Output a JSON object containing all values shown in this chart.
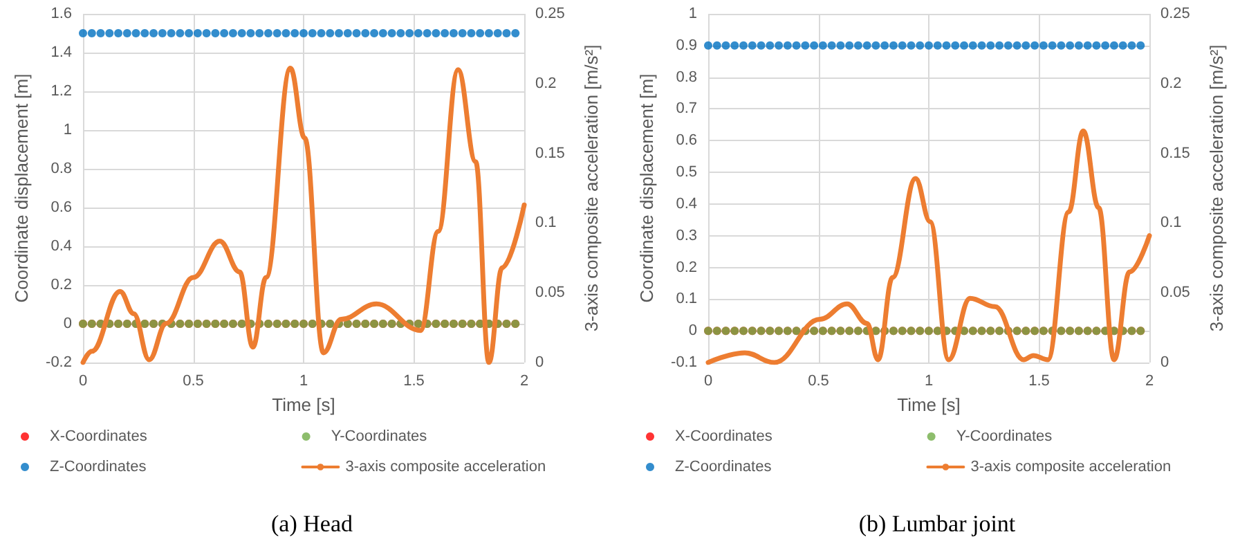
{
  "chart_data": [
    {
      "type": "scatter",
      "title": "(a) Head",
      "xlabel": "Time [s]",
      "ylabel": "Coordinate displacement [m]",
      "y2label": "3-axis composite acceleration [m/s²]",
      "xlim": [
        0,
        2
      ],
      "xticks": [
        0,
        0.5,
        1,
        1.5,
        2
      ],
      "ylim": [
        -0.2,
        1.6
      ],
      "yticks": [
        -0.2,
        0,
        0.2,
        0.4,
        0.6,
        0.8,
        1,
        1.2,
        1.4,
        1.6
      ],
      "y2lim": [
        0,
        0.25
      ],
      "y2ticks": [
        0,
        0.05,
        0.1,
        0.15,
        0.2,
        0.25
      ],
      "grid": true,
      "legend": "bottom",
      "marker": "circle",
      "x": [
        0,
        0.04,
        0.08,
        0.12,
        0.16,
        0.2,
        0.24,
        0.28,
        0.32,
        0.36,
        0.4,
        0.44,
        0.48,
        0.52,
        0.56,
        0.6,
        0.64,
        0.68,
        0.72,
        0.76,
        0.8,
        0.84,
        0.88,
        0.92,
        0.96,
        1,
        1.04,
        1.08,
        1.12,
        1.16,
        1.2,
        1.24,
        1.28,
        1.32,
        1.36,
        1.4,
        1.44,
        1.48,
        1.52,
        1.56,
        1.6,
        1.64,
        1.68,
        1.72,
        1.76,
        1.8,
        1.84,
        1.88,
        1.92,
        1.96
      ],
      "series": [
        {
          "name": "X-Coordinates",
          "color": "#ff0000",
          "values": [
            0,
            0,
            0,
            0,
            0,
            0,
            0,
            0,
            0,
            0,
            0,
            0,
            0,
            0,
            0,
            0,
            0,
            0,
            0,
            0,
            0,
            0,
            0,
            0,
            0,
            0,
            0,
            0,
            0,
            0,
            0,
            0,
            0,
            0,
            0,
            0,
            0,
            0,
            0,
            0,
            0,
            0,
            0,
            0,
            0,
            0,
            0,
            0,
            0,
            0
          ]
        },
        {
          "name": "Y-Coordinates",
          "color": "#70ad47",
          "values": [
            0,
            0,
            0,
            0,
            0,
            0,
            0,
            0,
            0,
            0,
            0,
            0,
            0,
            0,
            0,
            0,
            0,
            0,
            0,
            0,
            0,
            0,
            0,
            0,
            0,
            0,
            0,
            0,
            0,
            0,
            0,
            0,
            0,
            0,
            0,
            0,
            0,
            0,
            0,
            0,
            0,
            0,
            0,
            0,
            0,
            0,
            0,
            0,
            0,
            0
          ]
        },
        {
          "name": "Z-Coordinates",
          "color": "#0070c0",
          "values": [
            1.5,
            1.5,
            1.5,
            1.5,
            1.5,
            1.5,
            1.5,
            1.5,
            1.5,
            1.5,
            1.5,
            1.5,
            1.5,
            1.5,
            1.5,
            1.5,
            1.5,
            1.5,
            1.5,
            1.5,
            1.5,
            1.5,
            1.5,
            1.5,
            1.5,
            1.5,
            1.5,
            1.5,
            1.5,
            1.5,
            1.5,
            1.5,
            1.5,
            1.5,
            1.5,
            1.5,
            1.5,
            1.5,
            1.5,
            1.5,
            1.5,
            1.5,
            1.5,
            1.5,
            1.5,
            1.5,
            1.5,
            1.5,
            1.5,
            1.5
          ]
        },
        {
          "name": "3-axis composite acceleration",
          "type": "line",
          "axis": "y2",
          "marker": "none",
          "color": "#ed7d31",
          "x": [
            0,
            0.04,
            0.168,
            0.23,
            0.3,
            0.377,
            0.5,
            0.62,
            0.71,
            0.77,
            0.83,
            0.94,
            1.005,
            1.09,
            1.17,
            1.33,
            1.53,
            1.61,
            1.7,
            1.78,
            1.84,
            1.9,
            2
          ],
          "values": [
            0,
            0.008,
            0.051,
            0.035,
            0.002,
            0.028,
            0.061,
            0.087,
            0.065,
            0.011,
            0.061,
            0.211,
            0.161,
            0.007,
            0.031,
            0.042,
            0.023,
            0.094,
            0.21,
            0.144,
            0,
            0.068,
            0.113
          ]
        }
      ]
    },
    {
      "type": "scatter",
      "title": "(b) Lumbar joint",
      "xlabel": "Time [s]",
      "ylabel": "Coordinate displacement [m]",
      "y2label": "3-axis composite acceleration [m/s²]",
      "xlim": [
        0,
        2
      ],
      "xticks": [
        0,
        0.5,
        1,
        1.5,
        2
      ],
      "ylim": [
        -0.1,
        1
      ],
      "yticks": [
        -0.1,
        0,
        0.1,
        0.2,
        0.3,
        0.4,
        0.5,
        0.6,
        0.7,
        0.8,
        0.9,
        1
      ],
      "y2lim": [
        0,
        0.25
      ],
      "y2ticks": [
        0,
        0.05,
        0.1,
        0.15,
        0.2,
        0.25
      ],
      "grid": true,
      "legend": "bottom",
      "marker": "circle",
      "x": [
        0,
        0.04,
        0.08,
        0.12,
        0.16,
        0.2,
        0.24,
        0.28,
        0.32,
        0.36,
        0.4,
        0.44,
        0.48,
        0.52,
        0.56,
        0.6,
        0.64,
        0.68,
        0.72,
        0.76,
        0.8,
        0.84,
        0.88,
        0.92,
        0.96,
        1,
        1.04,
        1.08,
        1.12,
        1.16,
        1.2,
        1.24,
        1.28,
        1.32,
        1.36,
        1.4,
        1.44,
        1.48,
        1.52,
        1.56,
        1.6,
        1.64,
        1.68,
        1.72,
        1.76,
        1.8,
        1.84,
        1.88,
        1.92,
        1.96
      ],
      "series": [
        {
          "name": "X-Coordinates",
          "color": "#ff0000",
          "values": [
            0,
            0,
            0,
            0,
            0,
            0,
            0,
            0,
            0,
            0,
            0,
            0,
            0,
            0,
            0,
            0,
            0,
            0,
            0,
            0,
            0,
            0,
            0,
            0,
            0,
            0,
            0,
            0,
            0,
            0,
            0,
            0,
            0,
            0,
            0,
            0,
            0,
            0,
            0,
            0,
            0,
            0,
            0,
            0,
            0,
            0,
            0,
            0,
            0,
            0
          ]
        },
        {
          "name": "Y-Coordinates",
          "color": "#70ad47",
          "values": [
            0,
            0,
            0,
            0,
            0,
            0,
            0,
            0,
            0,
            0,
            0,
            0,
            0,
            0,
            0,
            0,
            0,
            0,
            0,
            0,
            0,
            0,
            0,
            0,
            0,
            0,
            0,
            0,
            0,
            0,
            0,
            0,
            0,
            0,
            0,
            0,
            0,
            0,
            0,
            0,
            0,
            0,
            0,
            0,
            0,
            0,
            0,
            0,
            0,
            0
          ]
        },
        {
          "name": "Z-Coordinates",
          "color": "#0070c0",
          "values": [
            0.9,
            0.9,
            0.9,
            0.9,
            0.9,
            0.9,
            0.9,
            0.9,
            0.9,
            0.9,
            0.9,
            0.9,
            0.9,
            0.9,
            0.9,
            0.9,
            0.9,
            0.9,
            0.9,
            0.9,
            0.9,
            0.9,
            0.9,
            0.9,
            0.9,
            0.9,
            0.9,
            0.9,
            0.9,
            0.9,
            0.9,
            0.9,
            0.9,
            0.9,
            0.9,
            0.9,
            0.9,
            0.9,
            0.9,
            0.9,
            0.9,
            0.9,
            0.9,
            0.9,
            0.9,
            0.9,
            0.9,
            0.9,
            0.9,
            0.9
          ]
        },
        {
          "name": "3-axis composite acceleration",
          "type": "line",
          "axis": "y2",
          "marker": "none",
          "color": "#ed7d31",
          "x": [
            0,
            0.166,
            0.3,
            0.506,
            0.63,
            0.72,
            0.77,
            0.836,
            0.94,
            1.006,
            1.09,
            1.187,
            1.3,
            1.43,
            1.474,
            1.54,
            1.634,
            1.7,
            1.77,
            1.84,
            1.91,
            2
          ],
          "values": [
            0,
            0.007,
            0,
            0.031,
            0.042,
            0.028,
            0.002,
            0.061,
            0.132,
            0.101,
            0.002,
            0.046,
            0.04,
            0.002,
            0.005,
            0.002,
            0.108,
            0.166,
            0.111,
            0.002,
            0.065,
            0.091
          ]
        }
      ]
    }
  ]
}
